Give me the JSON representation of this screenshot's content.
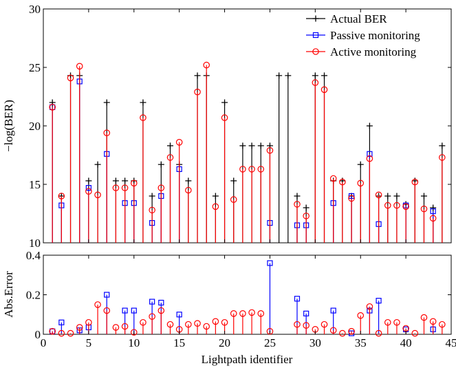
{
  "colors": {
    "actual": "#000000",
    "passive": "#0000ff",
    "active": "#ff0000"
  },
  "chart_data": [
    {
      "type": "stem",
      "panel": "top",
      "xlabel": "",
      "ylabel": "−log(BER)",
      "xlim": [
        0,
        45
      ],
      "ylim": [
        10,
        30
      ],
      "yticks": [
        10,
        15,
        20,
        25,
        30
      ],
      "xticks": [
        0,
        5,
        10,
        15,
        20,
        25,
        30,
        35,
        40,
        45
      ],
      "legend_position": "top-right",
      "x": [
        1,
        2,
        3,
        4,
        5,
        6,
        7,
        8,
        9,
        10,
        11,
        12,
        13,
        14,
        15,
        16,
        17,
        18,
        19,
        20,
        21,
        22,
        23,
        24,
        25,
        26,
        27,
        28,
        29,
        30,
        31,
        32,
        33,
        34,
        35,
        36,
        37,
        38,
        39,
        40,
        41,
        42,
        43,
        44
      ],
      "series": [
        {
          "name": "Actual BER",
          "marker": "plus",
          "values": [
            22,
            14,
            24.3,
            24.3,
            15.3,
            16.7,
            22,
            15.3,
            15.3,
            15.3,
            22,
            14,
            16.7,
            18.3,
            16.7,
            15.3,
            24.3,
            24.3,
            14,
            22,
            15.3,
            18.3,
            18.3,
            18.3,
            18.3,
            24.3,
            24.3,
            14,
            13,
            24.3,
            24.3,
            15.3,
            15.3,
            14,
            16.7,
            20,
            14,
            14,
            14,
            13.3,
            15.3,
            14,
            13,
            18.3
          ]
        },
        {
          "name": "Passive monitoring",
          "marker": "square",
          "values": [
            21.6,
            13.2,
            null,
            23.8,
            14.7,
            null,
            17.6,
            null,
            13.4,
            13.4,
            null,
            11.7,
            14,
            null,
            16.3,
            null,
            null,
            null,
            null,
            null,
            null,
            null,
            null,
            null,
            11.7,
            null,
            null,
            11.5,
            11.5,
            null,
            null,
            13.4,
            null,
            14,
            null,
            17.6,
            11.6,
            null,
            null,
            13.2,
            null,
            null,
            12.7,
            null
          ]
        },
        {
          "name": "Active monitoring",
          "marker": "circle",
          "values": [
            21.6,
            14,
            24.1,
            25.1,
            14.4,
            14.1,
            19.4,
            14.7,
            14.7,
            15.1,
            20.7,
            12.8,
            14.7,
            17.3,
            18.6,
            14.5,
            22.9,
            25.2,
            13.1,
            20.7,
            13.7,
            16.3,
            16.3,
            16.3,
            17.9,
            null,
            null,
            13.3,
            12.3,
            23.7,
            23.1,
            15.5,
            15.2,
            13.8,
            15.1,
            17.2,
            14.1,
            13.2,
            13.2,
            13.1,
            15.2,
            12.9,
            12.1,
            17.3
          ]
        }
      ]
    },
    {
      "type": "stem",
      "panel": "bottom",
      "xlabel": "Lightpath identifier",
      "ylabel": "Abs.Error",
      "xlim": [
        0,
        45
      ],
      "ylim": [
        0,
        0.4
      ],
      "yticks": [
        0,
        0.2,
        0.4
      ],
      "xticks": [
        0,
        5,
        10,
        15,
        20,
        25,
        30,
        35,
        40,
        45
      ],
      "x": [
        1,
        2,
        3,
        4,
        5,
        6,
        7,
        8,
        9,
        10,
        11,
        12,
        13,
        14,
        15,
        16,
        17,
        18,
        19,
        20,
        21,
        22,
        23,
        24,
        25,
        26,
        27,
        28,
        29,
        30,
        31,
        32,
        33,
        34,
        35,
        36,
        37,
        38,
        39,
        40,
        41,
        42,
        43,
        44
      ],
      "series": [
        {
          "name": "Passive monitoring",
          "marker": "square",
          "values": [
            0.015,
            0.06,
            null,
            0.02,
            0.035,
            null,
            0.2,
            null,
            0.12,
            0.12,
            null,
            0.165,
            0.16,
            null,
            0.1,
            null,
            null,
            null,
            null,
            null,
            null,
            null,
            null,
            null,
            0.36,
            null,
            null,
            0.18,
            0.105,
            null,
            null,
            0.12,
            null,
            0.005,
            null,
            0.12,
            0.17,
            null,
            null,
            0.025,
            null,
            null,
            0.025,
            null
          ]
        },
        {
          "name": "Active monitoring",
          "marker": "circle",
          "values": [
            0.015,
            0.005,
            0.005,
            0.035,
            0.06,
            0.15,
            0.12,
            0.035,
            0.04,
            0.01,
            0.06,
            0.09,
            0.12,
            0.05,
            0.025,
            0.05,
            0.055,
            0.04,
            0.065,
            0.06,
            0.105,
            0.105,
            0.11,
            0.105,
            0.015,
            null,
            null,
            0.05,
            0.045,
            0.025,
            0.05,
            0.02,
            0.005,
            0.015,
            0.095,
            0.14,
            0.005,
            0.06,
            0.06,
            0.03,
            0.005,
            0.085,
            0.065,
            0.05
          ]
        }
      ]
    }
  ]
}
